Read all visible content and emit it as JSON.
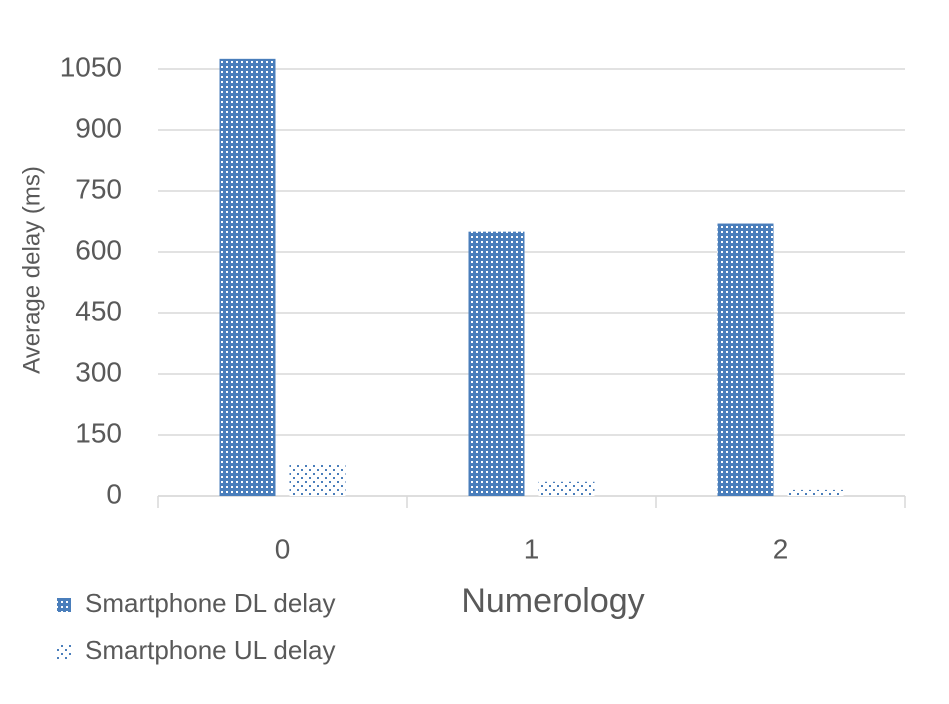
{
  "chart_data": {
    "type": "bar",
    "x_label": "Numerology",
    "y_label": "Average delay (ms)",
    "categories": [
      "0",
      "1",
      "2"
    ],
    "series": [
      {
        "name": "Smartphone DL delay",
        "color": "#4a7ebb",
        "values": [
          1075,
          650,
          670
        ]
      },
      {
        "name": "Smartphone UL delay",
        "color": "#4a7ebb",
        "values": [
          80,
          35,
          15
        ]
      }
    ],
    "ylim": [
      0,
      1050
    ],
    "yticks": [
      0,
      150,
      300,
      450,
      600,
      750,
      900,
      1050
    ],
    "grid": true
  }
}
